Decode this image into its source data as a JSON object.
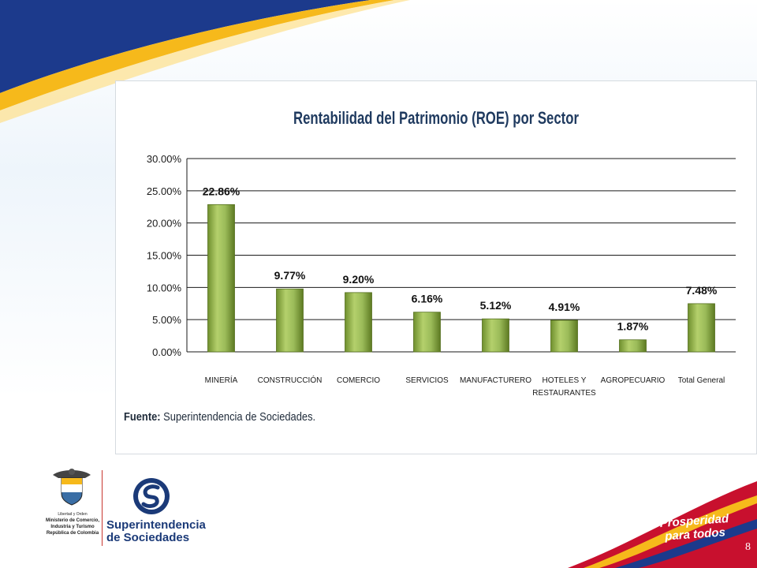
{
  "colors": {
    "banner_blue": "#1c3a8c",
    "banner_yellow": "#f6b91b",
    "bar_green": "#9bbb59",
    "bar_dark": "#6f8f2e",
    "title_color": "#1f3a5f",
    "stripe_red": "#c8102e"
  },
  "chart_data": {
    "type": "bar",
    "title": "Rentabilidad del Patrimonio (ROE) por Sector",
    "categories": [
      "MINERÍA",
      "CONSTRUCCIÓN",
      "COMERCIO",
      "SERVICIOS",
      "MANUFACTURERO",
      "HOTELES Y RESTAURANTES",
      "AGROPECUARIO",
      "Total General"
    ],
    "category_label_lines": [
      [
        "MINERÍA"
      ],
      [
        "CONSTRUCCIÓN"
      ],
      [
        "COMERCIO"
      ],
      [
        "SERVICIOS"
      ],
      [
        "MANUFACTURERO"
      ],
      [
        "HOTELES Y",
        "RESTAURANTES"
      ],
      [
        "AGROPECUARIO"
      ],
      [
        "Total General"
      ]
    ],
    "values": [
      22.86,
      9.77,
      9.2,
      6.16,
      5.12,
      4.91,
      1.87,
      7.48
    ],
    "data_labels": [
      "22.86%",
      "9.77%",
      "9.20%",
      "6.16%",
      "5.12%",
      "4.91%",
      "1.87%",
      "7.48%"
    ],
    "ylim": [
      0,
      30
    ],
    "yticks": [
      0,
      5,
      10,
      15,
      20,
      25,
      30
    ],
    "ytick_labels": [
      "0.00%",
      "5.00%",
      "10.00%",
      "15.00%",
      "20.00%",
      "25.00%",
      "30.00%"
    ],
    "grid": true,
    "legend": "none"
  },
  "source": {
    "label": "Fuente:",
    "text": "Superintendencia de Sociedades."
  },
  "footer": {
    "gov_lines": [
      "Libertad y Orden",
      "Ministerio de Comercio,",
      "Industria y Turismo",
      "República de Colombia"
    ],
    "ss_name_line1": "Superintendencia",
    "ss_name_line2": "de Sociedades",
    "slogan_line1": "Prosperidad",
    "slogan_line2": "para todos",
    "page_number": "8"
  }
}
